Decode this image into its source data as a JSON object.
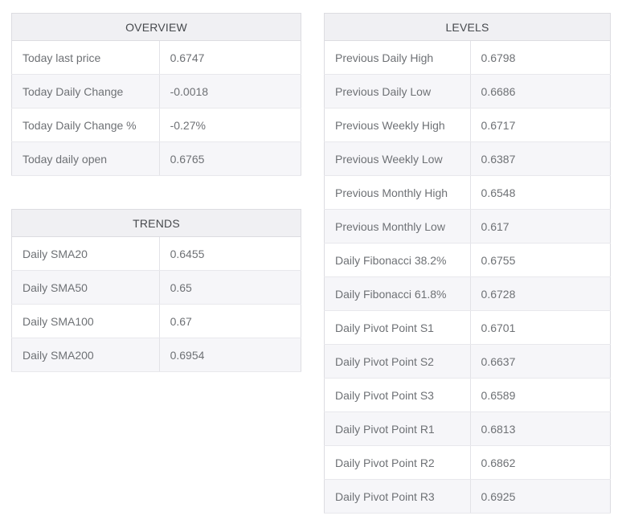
{
  "colors": {
    "header_bg": "#f0f0f3",
    "stripe_bg": "#f6f6f9",
    "row_bg": "#ffffff",
    "border": "#e8e8ec",
    "header_text": "#46494d",
    "body_text": "#6e7175"
  },
  "tables": {
    "overview": {
      "title": "OVERVIEW",
      "rows": [
        {
          "label": "Today last price",
          "value": "0.6747"
        },
        {
          "label": "Today Daily Change",
          "value": "-0.0018"
        },
        {
          "label": "Today Daily Change %",
          "value": "-0.27%"
        },
        {
          "label": "Today daily open",
          "value": "0.6765"
        }
      ]
    },
    "trends": {
      "title": "TRENDS",
      "rows": [
        {
          "label": "Daily SMA20",
          "value": "0.6455"
        },
        {
          "label": "Daily SMA50",
          "value": "0.65"
        },
        {
          "label": "Daily SMA100",
          "value": "0.67"
        },
        {
          "label": "Daily SMA200",
          "value": "0.6954"
        }
      ]
    },
    "levels": {
      "title": "LEVELS",
      "rows": [
        {
          "label": "Previous Daily High",
          "value": "0.6798"
        },
        {
          "label": "Previous Daily Low",
          "value": "0.6686"
        },
        {
          "label": "Previous Weekly High",
          "value": "0.6717"
        },
        {
          "label": "Previous Weekly Low",
          "value": "0.6387"
        },
        {
          "label": "Previous Monthly High",
          "value": "0.6548"
        },
        {
          "label": "Previous Monthly Low",
          "value": "0.617"
        },
        {
          "label": "Daily Fibonacci 38.2%",
          "value": "0.6755"
        },
        {
          "label": "Daily Fibonacci 61.8%",
          "value": "0.6728"
        },
        {
          "label": "Daily Pivot Point S1",
          "value": "0.6701"
        },
        {
          "label": "Daily Pivot Point S2",
          "value": "0.6637"
        },
        {
          "label": "Daily Pivot Point S3",
          "value": "0.6589"
        },
        {
          "label": "Daily Pivot Point R1",
          "value": "0.6813"
        },
        {
          "label": "Daily Pivot Point R2",
          "value": "0.6862"
        },
        {
          "label": "Daily Pivot Point R3",
          "value": "0.6925"
        }
      ]
    }
  }
}
